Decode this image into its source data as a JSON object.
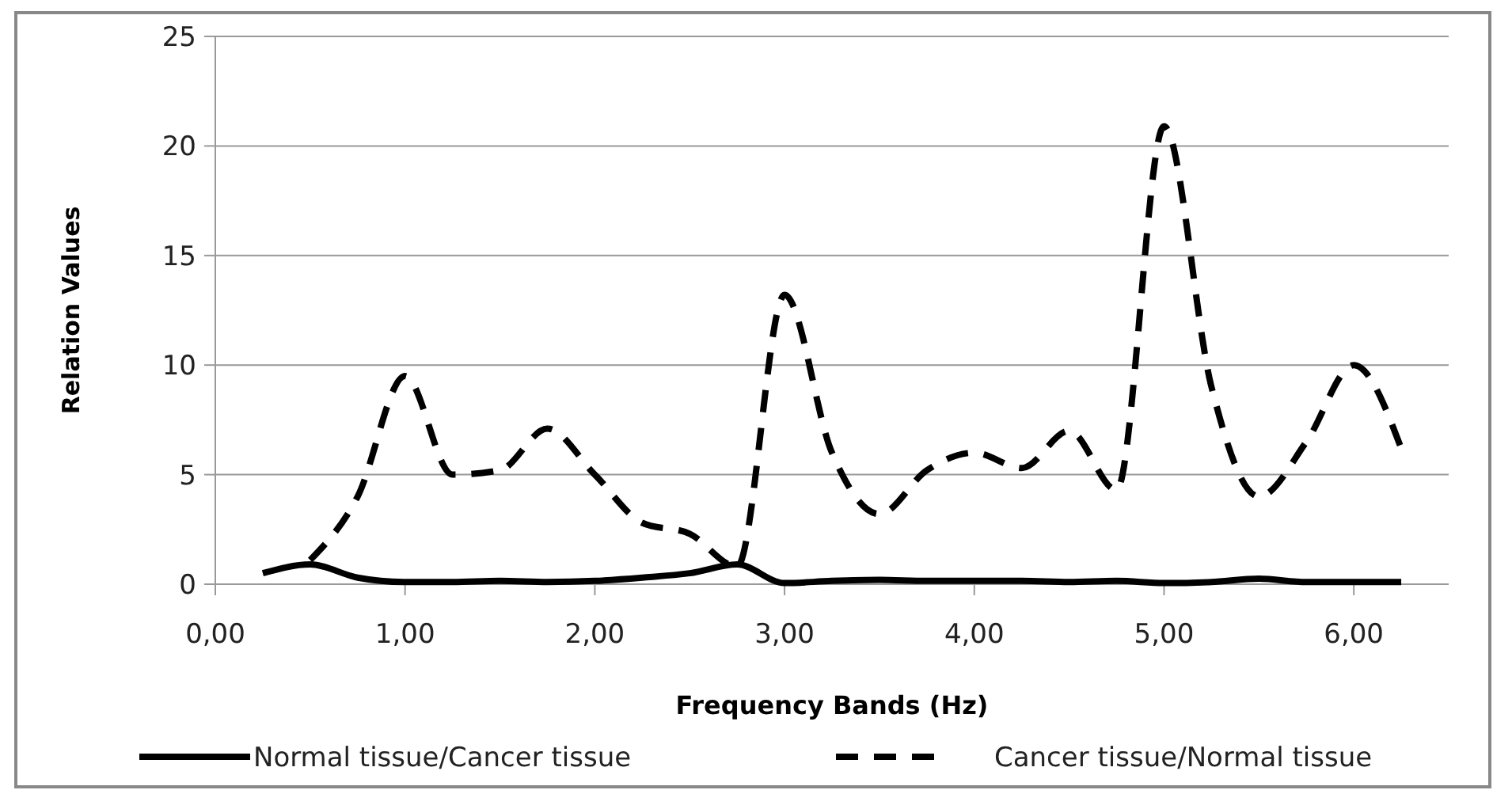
{
  "chart_data": {
    "type": "line",
    "xlabel": "Frequency Bands (Hz)",
    "ylabel": "Relation Values",
    "xlim": [
      0,
      6.5
    ],
    "xticks": [
      {
        "value": 0,
        "label": "0,00"
      },
      {
        "value": 1,
        "label": "1,00"
      },
      {
        "value": 2,
        "label": "2,00"
      },
      {
        "value": 3,
        "label": "3,00"
      },
      {
        "value": 4,
        "label": "4,00"
      },
      {
        "value": 5,
        "label": "5,00"
      },
      {
        "value": 6,
        "label": "6,00"
      }
    ],
    "ylim": [
      0,
      25
    ],
    "yticks": [
      0,
      5,
      10,
      15,
      20,
      25
    ],
    "grid": "y",
    "legend": "bottom",
    "marker": "none",
    "series": [
      {
        "name": "Normal tissue/Cancer tissue",
        "color": "#000000",
        "line_style": "solid",
        "x": [
          0.25,
          0.5,
          0.75,
          1,
          1.25,
          1.5,
          1.75,
          2,
          2.25,
          2.5,
          2.75,
          3,
          3.25,
          3.5,
          3.75,
          4,
          4.25,
          4.5,
          4.75,
          5,
          5.25,
          5.5,
          5.75,
          6,
          6.25
        ],
        "values": [
          0.5,
          0.9,
          0.3,
          0.1,
          0.1,
          0.15,
          0.1,
          0.15,
          0.3,
          0.5,
          0.9,
          0.05,
          0.15,
          0.2,
          0.15,
          0.15,
          0.15,
          0.1,
          0.15,
          0.05,
          0.1,
          0.25,
          0.1,
          0.1,
          0.1
        ]
      },
      {
        "name": "Cancer tissue/Normal tissue",
        "color": "#000000",
        "line_style": "dashed",
        "x": [
          0.5,
          0.75,
          1,
          1.25,
          1.5,
          1.75,
          2,
          2.25,
          2.5,
          2.75,
          3,
          3.25,
          3.5,
          3.75,
          4,
          4.25,
          4.5,
          4.75,
          5,
          5.25,
          5.5,
          5.75,
          6,
          6.25
        ],
        "values": [
          1.1,
          4,
          9.5,
          5,
          5.2,
          7.1,
          5,
          2.8,
          2.3,
          0.8,
          13.2,
          6,
          3.2,
          5.2,
          6,
          5.3,
          7,
          4.3,
          20.9,
          9,
          4,
          6.5,
          10,
          6.2
        ]
      }
    ]
  }
}
